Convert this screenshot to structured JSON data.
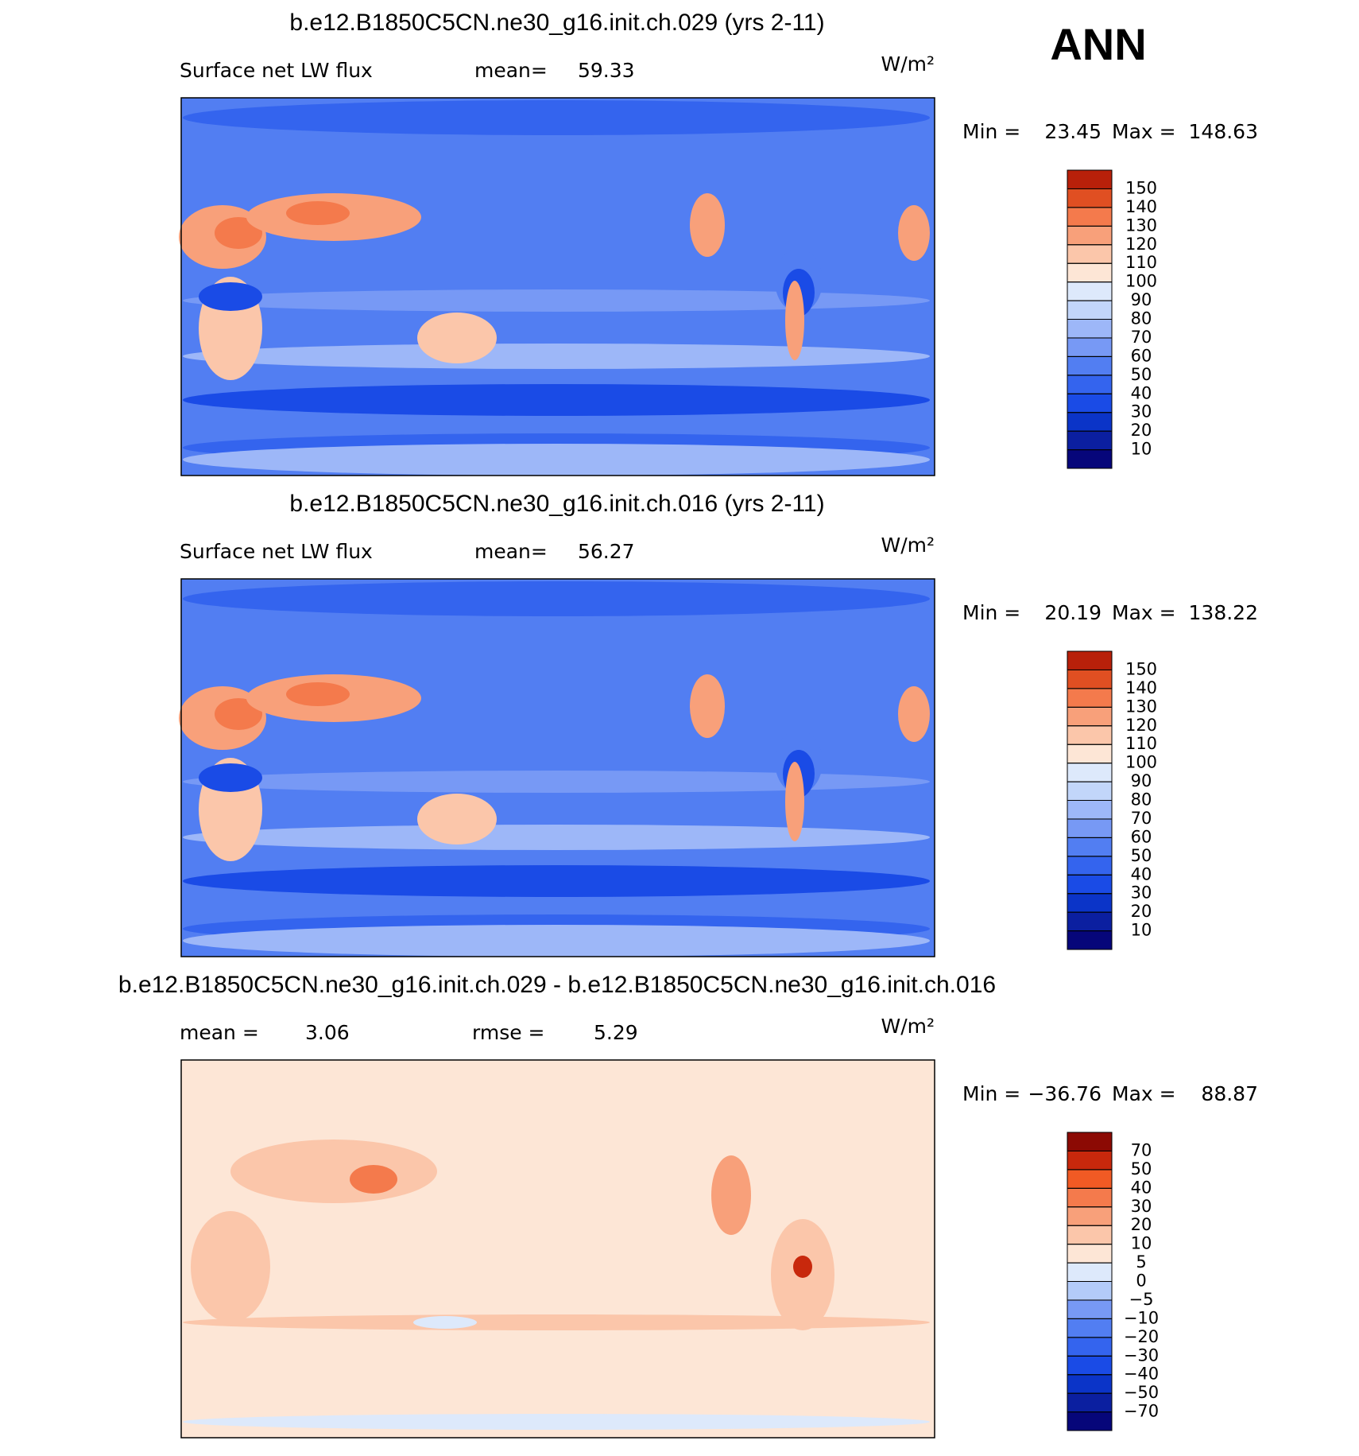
{
  "header": {
    "season": "ANN"
  },
  "panels": [
    {
      "title": "b.e12.B1850C5CN.ne30_g16.init.ch.029 (yrs 2-11)",
      "stats": [
        {
          "label": "Surface net LW flux"
        },
        {
          "label": "mean=",
          "value": 59.33
        }
      ],
      "units": "W/m²",
      "min_label": "Min =",
      "min": 23.45,
      "max_label": "Max =",
      "max": 148.63,
      "map": "abs",
      "levels": [
        10,
        20,
        30,
        40,
        50,
        60,
        70,
        80,
        90,
        100,
        110,
        120,
        130,
        140,
        150
      ],
      "colors": [
        "#06067a",
        "#0b1fa0",
        "#0b34c8",
        "#1a4be6",
        "#3464ee",
        "#527ef2",
        "#7799f5",
        "#9db7f8",
        "#c2d6fa",
        "#dde9fb",
        "#fde6d6",
        "#fbc6aa",
        "#f8a07a",
        "#f47a4c",
        "#e04f22",
        "#b8200a"
      ]
    },
    {
      "title": "b.e12.B1850C5CN.ne30_g16.init.ch.016 (yrs 2-11)",
      "stats": [
        {
          "label": "Surface net LW flux"
        },
        {
          "label": "mean=",
          "value": 56.27
        }
      ],
      "units": "W/m²",
      "min_label": "Min =",
      "min": 20.19,
      "max_label": "Max =",
      "max": 138.22,
      "map": "abs",
      "levels": [
        10,
        20,
        30,
        40,
        50,
        60,
        70,
        80,
        90,
        100,
        110,
        120,
        130,
        140,
        150
      ],
      "colors": [
        "#06067a",
        "#0b1fa0",
        "#0b34c8",
        "#1a4be6",
        "#3464ee",
        "#527ef2",
        "#7799f5",
        "#9db7f8",
        "#c2d6fa",
        "#dde9fb",
        "#fde6d6",
        "#fbc6aa",
        "#f8a07a",
        "#f47a4c",
        "#e04f22",
        "#b8200a"
      ]
    },
    {
      "title": "b.e12.B1850C5CN.ne30_g16.init.ch.029 - b.e12.B1850C5CN.ne30_g16.init.ch.016",
      "stats": [
        {
          "label": "mean =",
          "value": 3.06
        },
        {
          "label": "rmse =",
          "value": 5.29
        }
      ],
      "units": "W/m²",
      "min_label": "Min =",
      "min": {
        "value": -36.76,
        "label": "−36.76"
      },
      "max_label": "Max =",
      "max": 88.87,
      "map": "diff",
      "levels": [
        {
          "value": -70,
          "label": "−70"
        },
        {
          "value": -50,
          "label": "−50"
        },
        {
          "value": -40,
          "label": "−40"
        },
        {
          "value": -30,
          "label": "−30"
        },
        {
          "value": -20,
          "label": "−20"
        },
        {
          "value": -10,
          "label": "−10"
        },
        {
          "value": -5,
          "label": "−5"
        },
        0,
        5,
        10,
        20,
        30,
        40,
        50,
        70
      ],
      "colors": [
        "#06067a",
        "#0b1fa0",
        "#0b34c8",
        "#1a4be6",
        "#3464ee",
        "#527ef2",
        "#7799f5",
        "#b3cbf9",
        "#dde9fb",
        "#fde6d6",
        "#fbc6aa",
        "#f8a07a",
        "#f47a4c",
        "#f15a24",
        "#c8280c",
        "#8c0a04"
      ]
    }
  ]
}
